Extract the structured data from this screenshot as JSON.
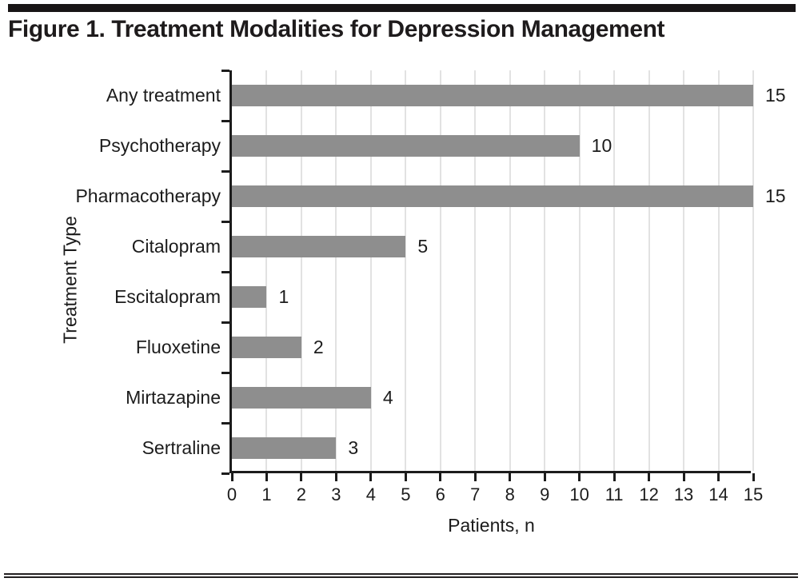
{
  "chart_data": {
    "type": "bar",
    "orientation": "horizontal",
    "title": "Figure 1. Treatment Modalities for Depression Management",
    "categories": [
      "Any treatment",
      "Psychotherapy",
      "Pharmacotherapy",
      "Citalopram",
      "Escitalopram",
      "Fluoxetine",
      "Mirtazapine",
      "Sertraline"
    ],
    "values": [
      15,
      10,
      15,
      5,
      1,
      2,
      4,
      3
    ],
    "value_labels": [
      "15",
      "10",
      "15",
      "5",
      "1",
      "2",
      "4",
      "3"
    ],
    "xlabel": "Patients, n",
    "ylabel": "Treatment Type",
    "xlim": [
      0,
      15
    ],
    "xticks": [
      0,
      1,
      2,
      3,
      4,
      5,
      6,
      7,
      8,
      9,
      10,
      11,
      12,
      13,
      14,
      15
    ],
    "grid": "vertical",
    "legend": "none",
    "colors": {
      "bar": "#8e8e8e",
      "gridline": "#e2e2e2",
      "axis": "#1c1c1c",
      "text": "#1c1c1c",
      "title": "#1e1b1c",
      "rule": "#181516"
    }
  }
}
